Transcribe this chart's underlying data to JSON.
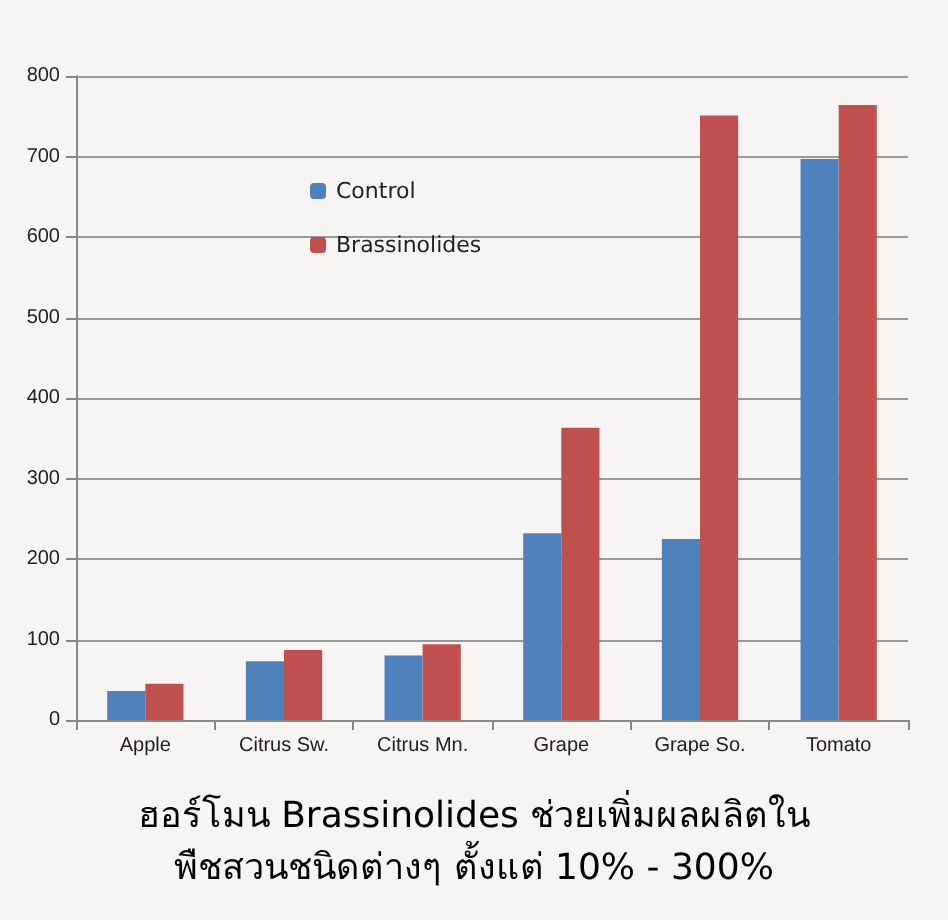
{
  "chart_data": {
    "type": "bar",
    "title": "ฮอร์โมน Brassinolides ช่วยเพิ่มผลผลิตใน\nพืชสวนชนิดต่างๆ ตั้งแต่ 10% - 300%",
    "categories": [
      "Apple",
      "Citrus Sw.",
      "Citrus Mn.",
      "Grape",
      "Grape So.",
      "Tomato"
    ],
    "series": [
      {
        "name": "Control",
        "color": "#4f81bd",
        "values": [
          36,
          73,
          80,
          232,
          225,
          697
        ]
      },
      {
        "name": "Brassinolides",
        "color": "#c0504d",
        "values": [
          45,
          87,
          94,
          363,
          751,
          764
        ]
      }
    ],
    "ylim": [
      0,
      800
    ],
    "yticks": [
      0,
      100,
      200,
      300,
      400,
      500,
      600,
      700,
      800
    ],
    "grid": "y",
    "legend": "top left"
  }
}
